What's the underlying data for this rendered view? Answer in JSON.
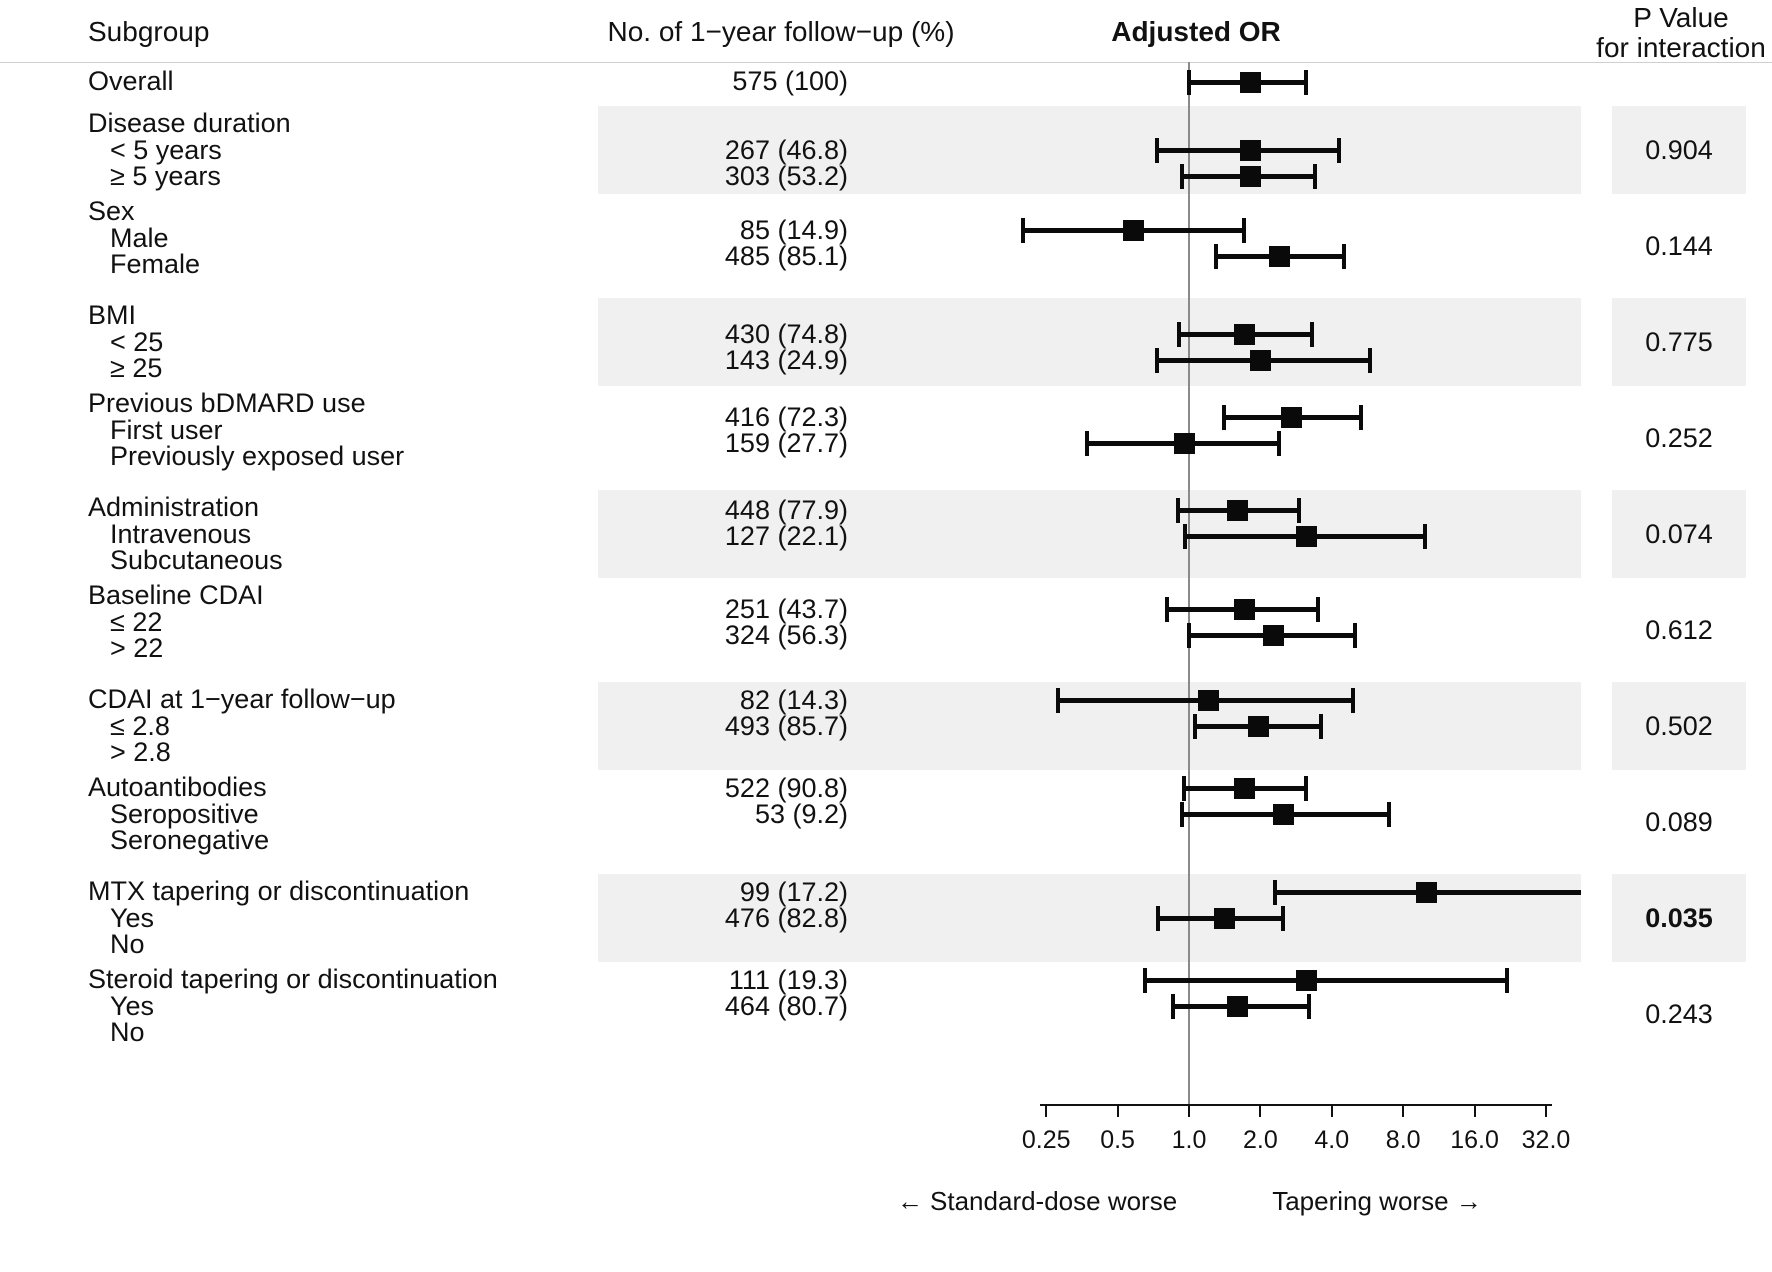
{
  "chart_data": {
    "type": "scatter",
    "subtype": "forest-plot",
    "title": "Adjusted OR",
    "columns": {
      "subgroup": "Subgroup",
      "n": "No. of 1−year follow−up (%)",
      "or": "Adjusted OR",
      "p_line1": "P Value",
      "p_line2": "for interaction"
    },
    "xscale": "log2",
    "xlim": [
      0.25,
      32
    ],
    "xticks": [
      "0.25",
      "0.5",
      "1.0",
      "2.0",
      "4.0",
      "8.0",
      "16.0",
      "32.0"
    ],
    "ref_line": 1.0,
    "xlabel_left": "← Standard-dose worse",
    "xlabel_right": "Tapering worse →",
    "legend_position": "none",
    "grid": false,
    "overall": {
      "label": "Overall",
      "n": "575 (100)",
      "or": 1.8,
      "ci": [
        1.0,
        3.1
      ]
    },
    "groups": [
      {
        "label": "Disease duration",
        "shaded": true,
        "p": "0.904",
        "p_bold": false,
        "rows": [
          {
            "label": "< 5 years",
            "n": "267 (46.8)",
            "or": 1.8,
            "ci": [
              0.73,
              4.3
            ]
          },
          {
            "label": "≥ 5 years",
            "n": "303 (53.2)",
            "or": 1.8,
            "ci": [
              0.93,
              3.4
            ]
          }
        ]
      },
      {
        "label": "Sex",
        "shaded": false,
        "p": "0.144",
        "p_bold": false,
        "rows": [
          {
            "label": "Male",
            "n": "85 (14.9)",
            "or": 0.58,
            "ci": [
              0.2,
              1.7
            ]
          },
          {
            "label": "Female",
            "n": "485 (85.1)",
            "or": 2.4,
            "ci": [
              1.3,
              4.5
            ]
          }
        ]
      },
      {
        "label": "BMI",
        "shaded": true,
        "p": "0.775",
        "p_bold": false,
        "rows": [
          {
            "label": "< 25",
            "n": "430 (74.8)",
            "or": 1.7,
            "ci": [
              0.91,
              3.3
            ]
          },
          {
            "label": "≥ 25",
            "n": "143 (24.9)",
            "or": 2.0,
            "ci": [
              0.73,
              5.8
            ]
          }
        ]
      },
      {
        "label": "Previous bDMARD use",
        "shaded": false,
        "p": "0.252",
        "p_bold": false,
        "rows": [
          {
            "label": "First user",
            "n": "416 (72.3)",
            "or": 2.7,
            "ci": [
              1.4,
              5.3
            ]
          },
          {
            "label": "Previously exposed user",
            "n": "159 (27.7)",
            "or": 0.95,
            "ci": [
              0.37,
              2.4
            ]
          }
        ]
      },
      {
        "label": "Administration",
        "shaded": true,
        "p": "0.074",
        "p_bold": false,
        "rows": [
          {
            "label": "Intravenous",
            "n": "448 (77.9)",
            "or": 1.6,
            "ci": [
              0.9,
              2.9
            ]
          },
          {
            "label": "Subcutaneous",
            "n": "127 (22.1)",
            "or": 3.1,
            "ci": [
              0.96,
              9.9
            ]
          }
        ]
      },
      {
        "label": "Baseline CDAI",
        "shaded": false,
        "p": "0.612",
        "p_bold": false,
        "rows": [
          {
            "label": "≤ 22",
            "n": "251 (43.7)",
            "or": 1.7,
            "ci": [
              0.81,
              3.5
            ]
          },
          {
            "label": "> 22",
            "n": "324 (56.3)",
            "or": 2.25,
            "ci": [
              1.0,
              5.0
            ]
          }
        ]
      },
      {
        "label": "CDAI at 1−year follow−up",
        "shaded": true,
        "p": "0.502",
        "p_bold": false,
        "rows": [
          {
            "label": "≤ 2.8",
            "n": "82 (14.3)",
            "or": 1.2,
            "ci": [
              0.28,
              4.9
            ]
          },
          {
            "label": "> 2.8",
            "n": "493 (85.7)",
            "or": 1.95,
            "ci": [
              1.06,
              3.6
            ]
          }
        ]
      },
      {
        "label": "Autoantibodies",
        "shaded": false,
        "p": "0.089",
        "p_bold": false,
        "rows": [
          {
            "label": "Seropositive",
            "n": "522 (90.8)",
            "or": 1.7,
            "ci": [
              0.95,
              3.1
            ]
          },
          {
            "label": "Seronegative",
            "n": "53 (9.2)",
            "or": 2.5,
            "ci": [
              0.93,
              7.0
            ]
          }
        ]
      },
      {
        "label": "MTX tapering or discontinuation",
        "shaded": true,
        "p": "0.035",
        "p_bold": true,
        "rows": [
          {
            "label": "Yes",
            "n": "99 (17.2)",
            "or": 10.0,
            "ci": [
              2.3,
              46.0
            ],
            "ci_high_clipped": true
          },
          {
            "label": "No",
            "n": "476 (82.8)",
            "or": 1.4,
            "ci": [
              0.74,
              2.5
            ]
          }
        ]
      },
      {
        "label": "Steroid tapering or discontinuation",
        "shaded": false,
        "p": "0.243",
        "p_bold": false,
        "rows": [
          {
            "label": "Yes",
            "n": "111 (19.3)",
            "or": 3.1,
            "ci": [
              0.65,
              22.0
            ]
          },
          {
            "label": "No",
            "n": "464 (80.7)",
            "or": 1.6,
            "ci": [
              0.86,
              3.2
            ]
          }
        ]
      }
    ]
  }
}
